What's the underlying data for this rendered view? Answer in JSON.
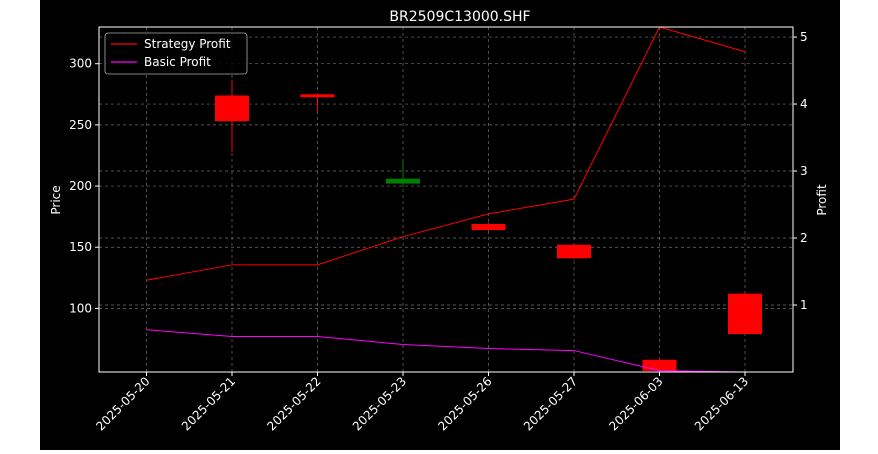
{
  "chart_data": {
    "type": "candlestick",
    "title": "BR2509C13000.SHF",
    "xlabel": "",
    "ylabel": "Price",
    "y2label": "Profit",
    "categories": [
      "2025-05-20",
      "2025-05-21",
      "2025-05-22",
      "2025-05-23",
      "2025-05-26",
      "2025-05-27",
      "2025-06-03",
      "2025-06-13"
    ],
    "ylim": [
      48,
      330
    ],
    "y2lim": [
      0.0,
      5.15
    ],
    "yticks": [
      100,
      150,
      200,
      250,
      300
    ],
    "y2ticks": [
      1,
      2,
      3,
      4,
      5
    ],
    "grid": true,
    "legend_position": "top-left",
    "candles": [
      null,
      {
        "open": 274,
        "close": 253,
        "high": 287,
        "low": 228,
        "color": "#ff0000"
      },
      {
        "open": 275,
        "close": 273,
        "high": 276,
        "low": 261,
        "color": "#ff0000"
      },
      {
        "open": 202,
        "close": 206,
        "high": 221,
        "low": 199,
        "color": "#008000"
      },
      {
        "open": 169,
        "close": 164,
        "high": 170,
        "low": 163,
        "color": "#ff0000"
      },
      {
        "open": 152,
        "close": 141,
        "high": 153,
        "low": 140,
        "color": "#ff0000"
      },
      {
        "open": 58,
        "close": 49,
        "high": 59,
        "low": 49,
        "color": "#ff0000"
      },
      {
        "open": 112,
        "close": 79,
        "high": 113,
        "low": 79,
        "color": "#ff0000"
      }
    ],
    "series": [
      {
        "name": "Strategy Profit",
        "axis": "right",
        "color": "#ff0000",
        "values": [
          1.37,
          1.6,
          1.6,
          2.02,
          2.36,
          2.58,
          5.15,
          4.78
        ]
      },
      {
        "name": "Basic Profit",
        "axis": "right",
        "color": "#ff00ff",
        "values": [
          0.63,
          0.53,
          0.53,
          0.41,
          0.35,
          0.32,
          0.02,
          0.0
        ]
      }
    ]
  }
}
